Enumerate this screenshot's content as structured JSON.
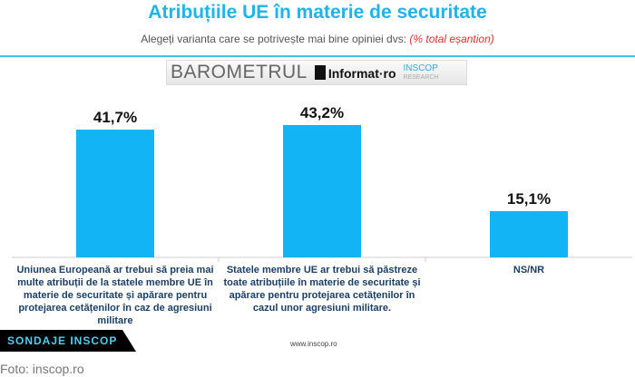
{
  "header": {
    "title": "Atribuțiile UE în materie de securitate",
    "subtitle": "Alegeți varianta care se potrivește mai bine opiniei dvs:",
    "subtitle_note": "(% total eșantion)"
  },
  "banner": {
    "barometru": "BAROMETRUL",
    "informat": "Informat·ro",
    "inscop": "INSCOP",
    "research": "RESEARCH"
  },
  "chart_data": {
    "type": "bar",
    "title": "Atribuțiile UE în materie de securitate",
    "categories": [
      "Uniunea Europeană ar trebui să preia mai multe atribuții de la statele membre UE în materie de securitate și apărare pentru protejarea cetățenilor în caz de agresiuni militare",
      "Statele membre UE ar trebui să păstreze toate atribuțiile în materie de securitate și apărare pentru protejarea cetățenilor în cazul unor agresiuni militare.",
      "NS/NR"
    ],
    "values": [
      41.7,
      43.2,
      15.1
    ],
    "value_labels": [
      "41,7%",
      "43,2%",
      "15,1%"
    ],
    "ylim": [
      0,
      50
    ],
    "color": "#12b4f5",
    "grid": false
  },
  "footer": {
    "badge": "SONDAJE INSCOP",
    "url": "www.inscop.ro",
    "credit": "Foto: inscop.ro"
  }
}
